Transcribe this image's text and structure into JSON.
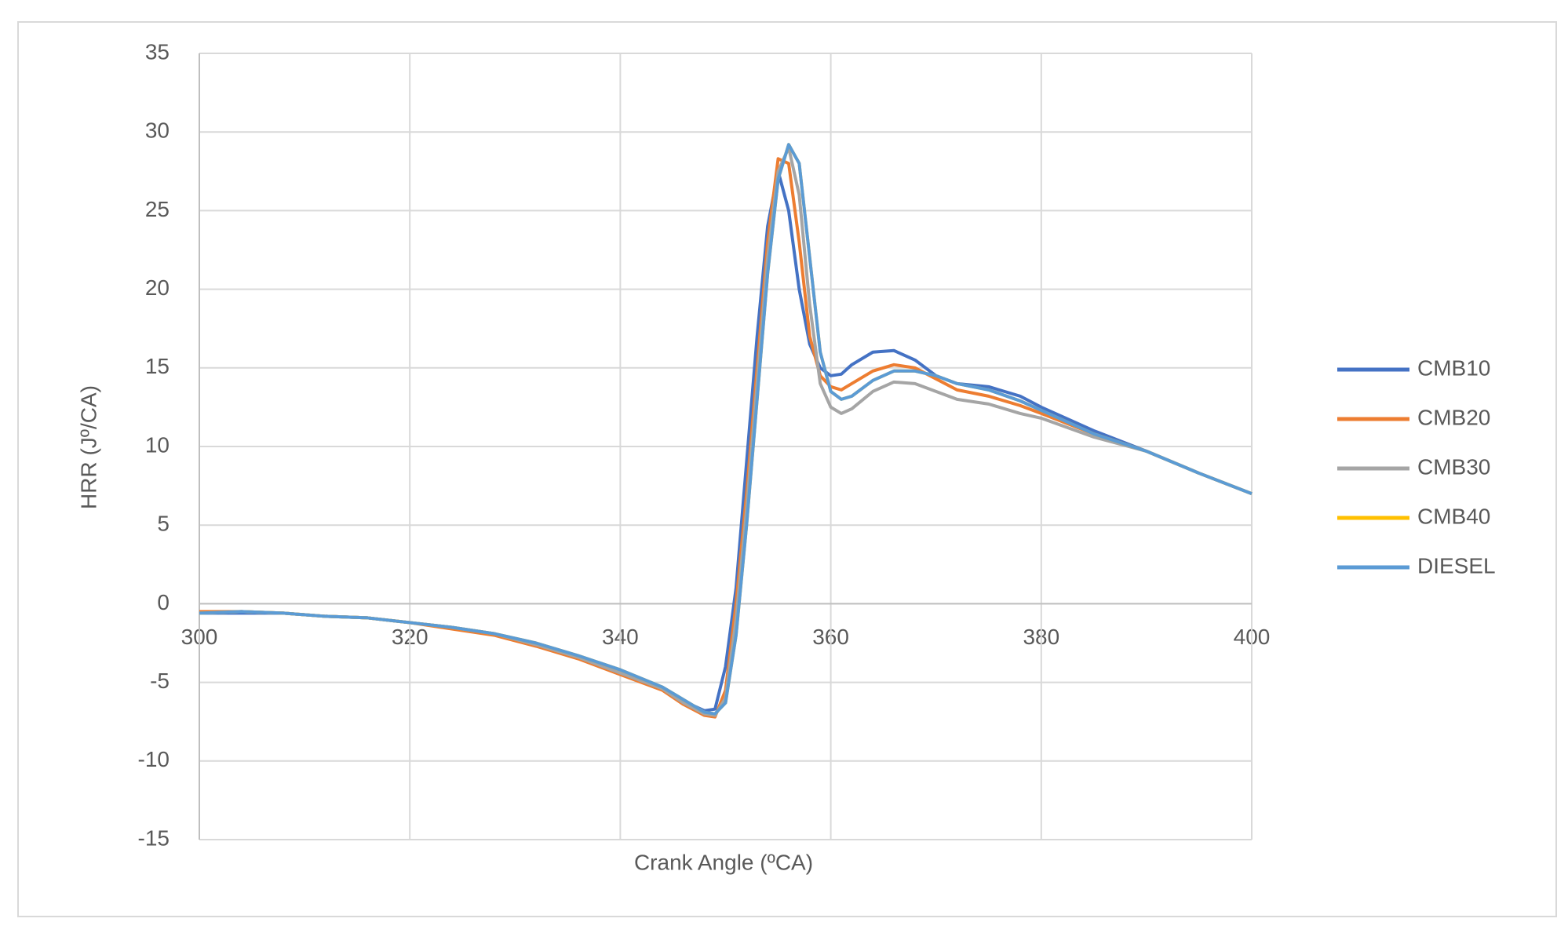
{
  "chart_data": {
    "type": "line",
    "xlabel": "Crank Angle (ºCA)",
    "ylabel": "HRR (Jº/CA)",
    "x": [
      300,
      304,
      308,
      312,
      316,
      320,
      324,
      328,
      332,
      336,
      340,
      344,
      346,
      348,
      349,
      350,
      351,
      352,
      353,
      354,
      355,
      356,
      357,
      358,
      359,
      360,
      361,
      362,
      364,
      366,
      368,
      370,
      372,
      375,
      378,
      380,
      385,
      390,
      395,
      400
    ],
    "series": [
      {
        "name": "CMB10",
        "color": "#4472c4",
        "values": [
          -0.6,
          -0.6,
          -0.6,
          -0.8,
          -0.9,
          -1.2,
          -1.5,
          -1.9,
          -2.6,
          -3.4,
          -4.3,
          -5.4,
          -6.2,
          -6.8,
          -6.7,
          -4,
          1,
          9,
          17,
          24,
          27.5,
          25,
          20,
          16.5,
          15,
          14.5,
          14.6,
          15.2,
          16.0,
          16.1,
          15.5,
          14.5,
          14.0,
          13.8,
          13.2,
          12.5,
          11.0,
          9.7,
          8.3,
          7.0
        ]
      },
      {
        "name": "CMB20",
        "color": "#ed7d31",
        "values": [
          -0.5,
          -0.5,
          -0.6,
          -0.8,
          -0.9,
          -1.2,
          -1.6,
          -2.0,
          -2.7,
          -3.5,
          -4.5,
          -5.5,
          -6.4,
          -7.1,
          -7.2,
          -5.5,
          0,
          7,
          15,
          23,
          28.3,
          28,
          23,
          17,
          14.5,
          13.8,
          13.6,
          14.0,
          14.8,
          15.2,
          15.0,
          14.3,
          13.6,
          13.2,
          12.6,
          12.1,
          10.8,
          9.7,
          8.3,
          7.0
        ]
      },
      {
        "name": "CMB30",
        "color": "#a5a5a5",
        "values": [
          -0.6,
          -0.5,
          -0.6,
          -0.8,
          -0.9,
          -1.2,
          -1.5,
          -1.9,
          -2.6,
          -3.4,
          -4.4,
          -5.4,
          -6.3,
          -7.0,
          -7.1,
          -6.0,
          -1,
          6,
          14,
          22,
          27.5,
          29.0,
          26,
          19,
          14,
          12.5,
          12.1,
          12.4,
          13.5,
          14.1,
          14.0,
          13.5,
          13.0,
          12.7,
          12.1,
          11.8,
          10.6,
          9.7,
          8.3,
          7.0
        ]
      },
      {
        "name": "CMB40",
        "color": "#ffc000",
        "values": [
          -0.6,
          -0.5,
          -0.6,
          -0.8,
          -0.9,
          -1.2,
          -1.5,
          -1.9,
          -2.5,
          -3.3,
          -4.2,
          -5.3,
          -6.1,
          -6.9,
          -7.0,
          -6.3,
          -2,
          5,
          13,
          21,
          27,
          29.2,
          28,
          22,
          16,
          13.5,
          13.0,
          13.2,
          14.2,
          14.8,
          14.8,
          14.5,
          14.0,
          13.6,
          12.9,
          12.3,
          10.8,
          9.7,
          8.3,
          7.0
        ]
      },
      {
        "name": "DIESEL",
        "color": "#5b9bd5",
        "values": [
          -0.6,
          -0.5,
          -0.6,
          -0.8,
          -0.9,
          -1.2,
          -1.5,
          -1.9,
          -2.5,
          -3.3,
          -4.2,
          -5.3,
          -6.1,
          -6.9,
          -7.0,
          -6.3,
          -2,
          5,
          13,
          21,
          27,
          29.2,
          28,
          22,
          16,
          13.5,
          13.0,
          13.2,
          14.2,
          14.8,
          14.8,
          14.5,
          14.0,
          13.6,
          12.9,
          12.3,
          10.8,
          9.7,
          8.3,
          7.0
        ]
      }
    ],
    "xlim": [
      300,
      400
    ],
    "xticks": [
      300,
      320,
      340,
      360,
      380,
      400
    ],
    "ylim": [
      -15,
      35
    ],
    "yticks": [
      -15,
      -10,
      -5,
      0,
      5,
      10,
      15,
      20,
      25,
      30,
      35
    ],
    "grid": true,
    "legend": "right"
  }
}
